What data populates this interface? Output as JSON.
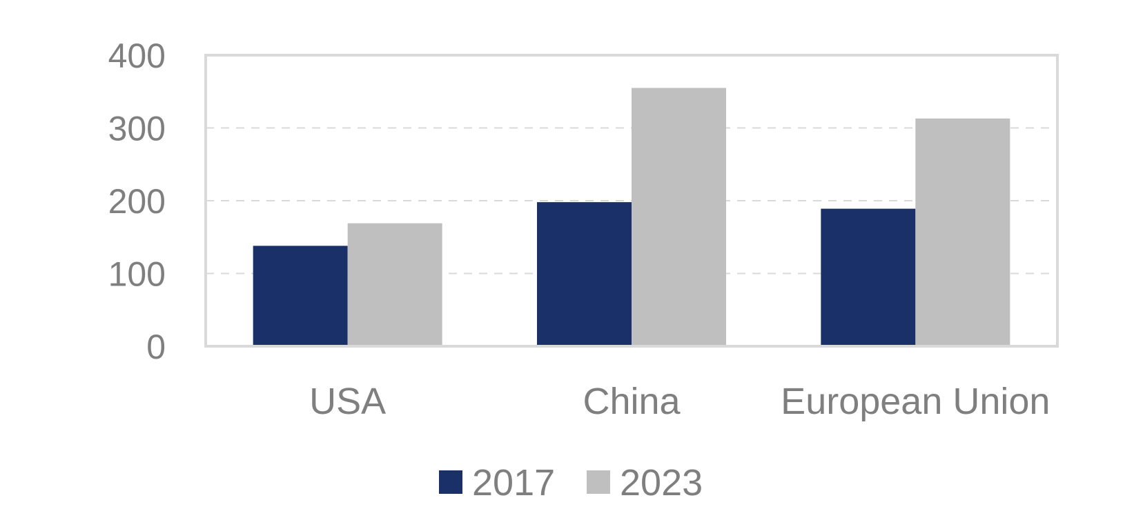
{
  "chart_data": {
    "type": "bar",
    "title": "",
    "xlabel": "",
    "ylabel": "",
    "categories": [
      "USA",
      "China",
      "European Union"
    ],
    "series": [
      {
        "name": "2017",
        "values": [
          138,
          198,
          189
        ],
        "color": "#1a3069"
      },
      {
        "name": "2023",
        "values": [
          169,
          355,
          313
        ],
        "color": "#bfbfbf"
      }
    ],
    "ylim": [
      0,
      400
    ],
    "yticks": [
      "0",
      "100",
      "200",
      "300",
      "400"
    ],
    "grid": "horizontal dashed",
    "legend_position": "bottom"
  },
  "colors": {
    "axis_text": "#7f7f7f",
    "frame": "#d9d9d9",
    "gridline": "#d9d9d9"
  }
}
